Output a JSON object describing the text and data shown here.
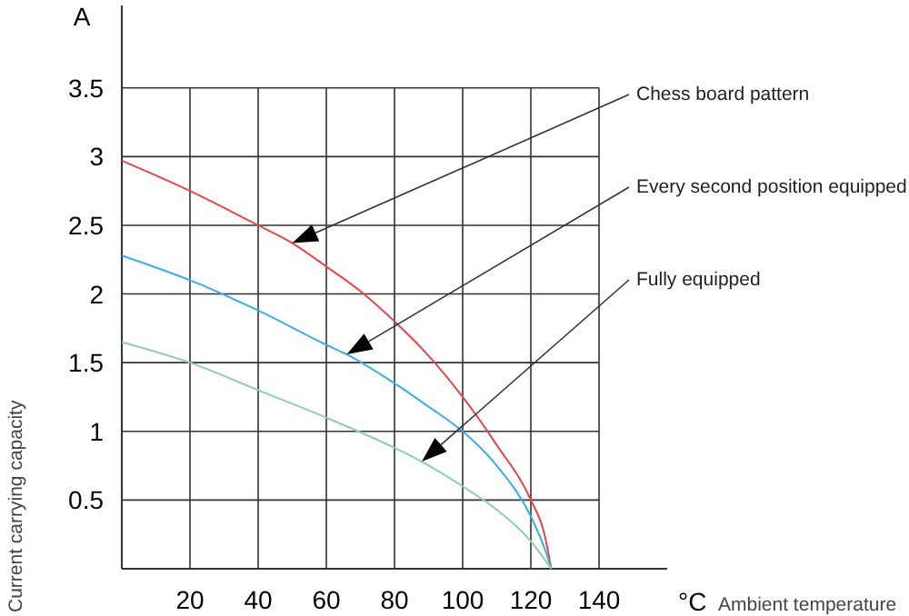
{
  "chart_data": {
    "type": "line",
    "xlabel": "Ambient temperature",
    "ylabel": "Current carrying capacity",
    "annotations": [
      "A",
      "°C"
    ],
    "xlim": [
      0,
      160
    ],
    "ylim": [
      0,
      4.1
    ],
    "xticks": [
      20,
      40,
      60,
      80,
      100,
      120,
      140
    ],
    "yticks": [
      0.5,
      1,
      1.5,
      2,
      2.5,
      3,
      3.5
    ],
    "grid": true,
    "marker": "none",
    "line_style": "solid",
    "series": [
      {
        "name": "Chess board pattern",
        "color": "#e8454a",
        "x": [
          0,
          20,
          40,
          50,
          60,
          70,
          80,
          90,
          100,
          110,
          120,
          124,
          126
        ],
        "values": [
          2.97,
          2.75,
          2.5,
          2.37,
          2.2,
          2.02,
          1.8,
          1.55,
          1.25,
          0.9,
          0.5,
          0.25,
          0
        ]
      },
      {
        "name": "Every second position equipped",
        "color": "#3aaee8",
        "x": [
          0,
          20,
          40,
          60,
          66,
          80,
          90,
          100,
          110,
          120,
          124,
          126
        ],
        "values": [
          2.28,
          2.1,
          1.88,
          1.63,
          1.56,
          1.35,
          1.18,
          1.0,
          0.75,
          0.38,
          0.15,
          0
        ]
      },
      {
        "name": "Fully equipped",
        "color": "#8fcfb0",
        "x": [
          0,
          20,
          40,
          60,
          80,
          88,
          100,
          110,
          120,
          126
        ],
        "values": [
          1.65,
          1.5,
          1.3,
          1.1,
          0.88,
          0.78,
          0.6,
          0.43,
          0.2,
          0
        ]
      }
    ]
  }
}
